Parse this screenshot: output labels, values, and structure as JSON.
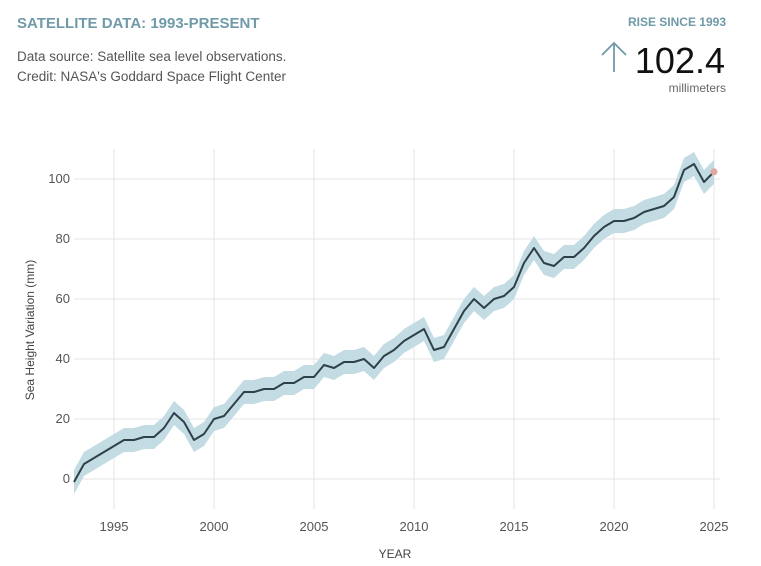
{
  "header": {
    "title": "SATELLITE DATA: 1993-PRESENT",
    "source": "Data source: Satellite sea level observations.",
    "credit": "Credit: NASA's Goddard Space Flight Center",
    "stat_label": "RISE SINCE 1993",
    "stat_value": "102.4",
    "stat_unit": "millimeters"
  },
  "chart_data": {
    "type": "line",
    "ylabel": "Sea Height Variation (mm)",
    "xlabel": "YEAR",
    "x": [
      1993,
      1993.5,
      1994,
      1994.5,
      1995,
      1995.5,
      1996,
      1996.5,
      1997,
      1997.5,
      1998,
      1998.5,
      1999,
      1999.5,
      2000,
      2000.5,
      2001,
      2001.5,
      2002,
      2002.5,
      2003,
      2003.5,
      2004,
      2004.5,
      2005,
      2005.5,
      2006,
      2006.5,
      2007,
      2007.5,
      2008,
      2008.5,
      2009,
      2009.5,
      2010,
      2010.5,
      2011,
      2011.5,
      2012,
      2012.5,
      2013,
      2013.5,
      2014,
      2014.5,
      2015,
      2015.5,
      2016,
      2016.5,
      2017,
      2017.5,
      2018,
      2018.5,
      2019,
      2019.5,
      2020,
      2020.5,
      2021,
      2021.5,
      2022,
      2022.5,
      2023,
      2023.5,
      2024,
      2024.5,
      2025
    ],
    "values": [
      -1,
      5,
      7,
      9,
      11,
      13,
      13,
      14,
      14,
      17,
      22,
      19,
      13,
      15,
      20,
      21,
      25,
      29,
      29,
      30,
      30,
      32,
      32,
      34,
      34,
      38,
      37,
      39,
      39,
      40,
      37,
      41,
      43,
      46,
      48,
      50,
      43,
      44,
      50,
      56,
      60,
      57,
      60,
      61,
      64,
      72,
      77,
      72,
      71,
      74,
      74,
      77,
      81,
      84,
      86,
      86,
      87,
      89,
      90,
      91,
      94,
      103,
      105,
      99,
      102.4
    ],
    "band_lower": [
      -5,
      1,
      3,
      5,
      7,
      9,
      9,
      10,
      10,
      13,
      18,
      15,
      9,
      11,
      16,
      17,
      21,
      25,
      25,
      26,
      26,
      28,
      28,
      30,
      30,
      34,
      33,
      35,
      35,
      36,
      33,
      37,
      39,
      42,
      44,
      46,
      39,
      40,
      46,
      52,
      56,
      53,
      56,
      57,
      60,
      68,
      73,
      68,
      67,
      70,
      70,
      73,
      77,
      80,
      82,
      82,
      83,
      85,
      86,
      87,
      90,
      99,
      101,
      95,
      98.4
    ],
    "band_upper": [
      3,
      9,
      11,
      13,
      15,
      17,
      17,
      18,
      18,
      21,
      26,
      23,
      17,
      19,
      24,
      25,
      29,
      33,
      33,
      34,
      34,
      36,
      36,
      38,
      38,
      42,
      41,
      43,
      43,
      44,
      41,
      45,
      47,
      50,
      52,
      54,
      47,
      48,
      54,
      60,
      64,
      61,
      64,
      65,
      68,
      76,
      81,
      76,
      75,
      78,
      78,
      81,
      85,
      88,
      90,
      90,
      91,
      93,
      94,
      95,
      98,
      107,
      109,
      103,
      106.4
    ],
    "line_color": "#2f4148",
    "band_color": "#c3dbe3",
    "end_color": "#e0a8a0",
    "xlim": [
      1993,
      2025
    ],
    "ylim": [
      -10,
      110
    ],
    "xticks": [
      1995,
      2000,
      2005,
      2010,
      2015,
      2020,
      2025
    ],
    "yticks": [
      0,
      20,
      40,
      60,
      80,
      100
    ],
    "grid": true
  }
}
